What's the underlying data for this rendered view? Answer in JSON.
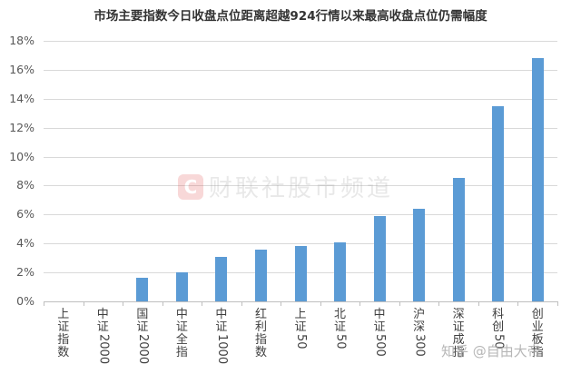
{
  "chart_data": {
    "type": "bar",
    "title": "市场主要指数今日收盘点位距离超越924行情以来最高收盘点位仍需幅度",
    "xlabel": "",
    "ylabel": "",
    "ylim": [
      0,
      18
    ],
    "yticks": [
      "0%",
      "2%",
      "4%",
      "6%",
      "8%",
      "10%",
      "12%",
      "14%",
      "16%",
      "18%"
    ],
    "grid": true,
    "legend": null,
    "categories": [
      "上证指数",
      "中证2000",
      "国证2000",
      "中证全指",
      "中证1000",
      "红利指数",
      "上证50",
      "北证50",
      "中证500",
      "沪深300",
      "深证成指",
      "科创50",
      "创业板指"
    ],
    "values": [
      0,
      0,
      1.6,
      2.0,
      3.1,
      3.6,
      3.8,
      4.1,
      5.9,
      6.4,
      8.5,
      13.5,
      16.8
    ],
    "unit": "%",
    "bar_color": "#5b9bd5"
  },
  "watermark": {
    "logo": "C",
    "text": "财联社股市频道"
  },
  "credit": "知乎 @自由大帝"
}
